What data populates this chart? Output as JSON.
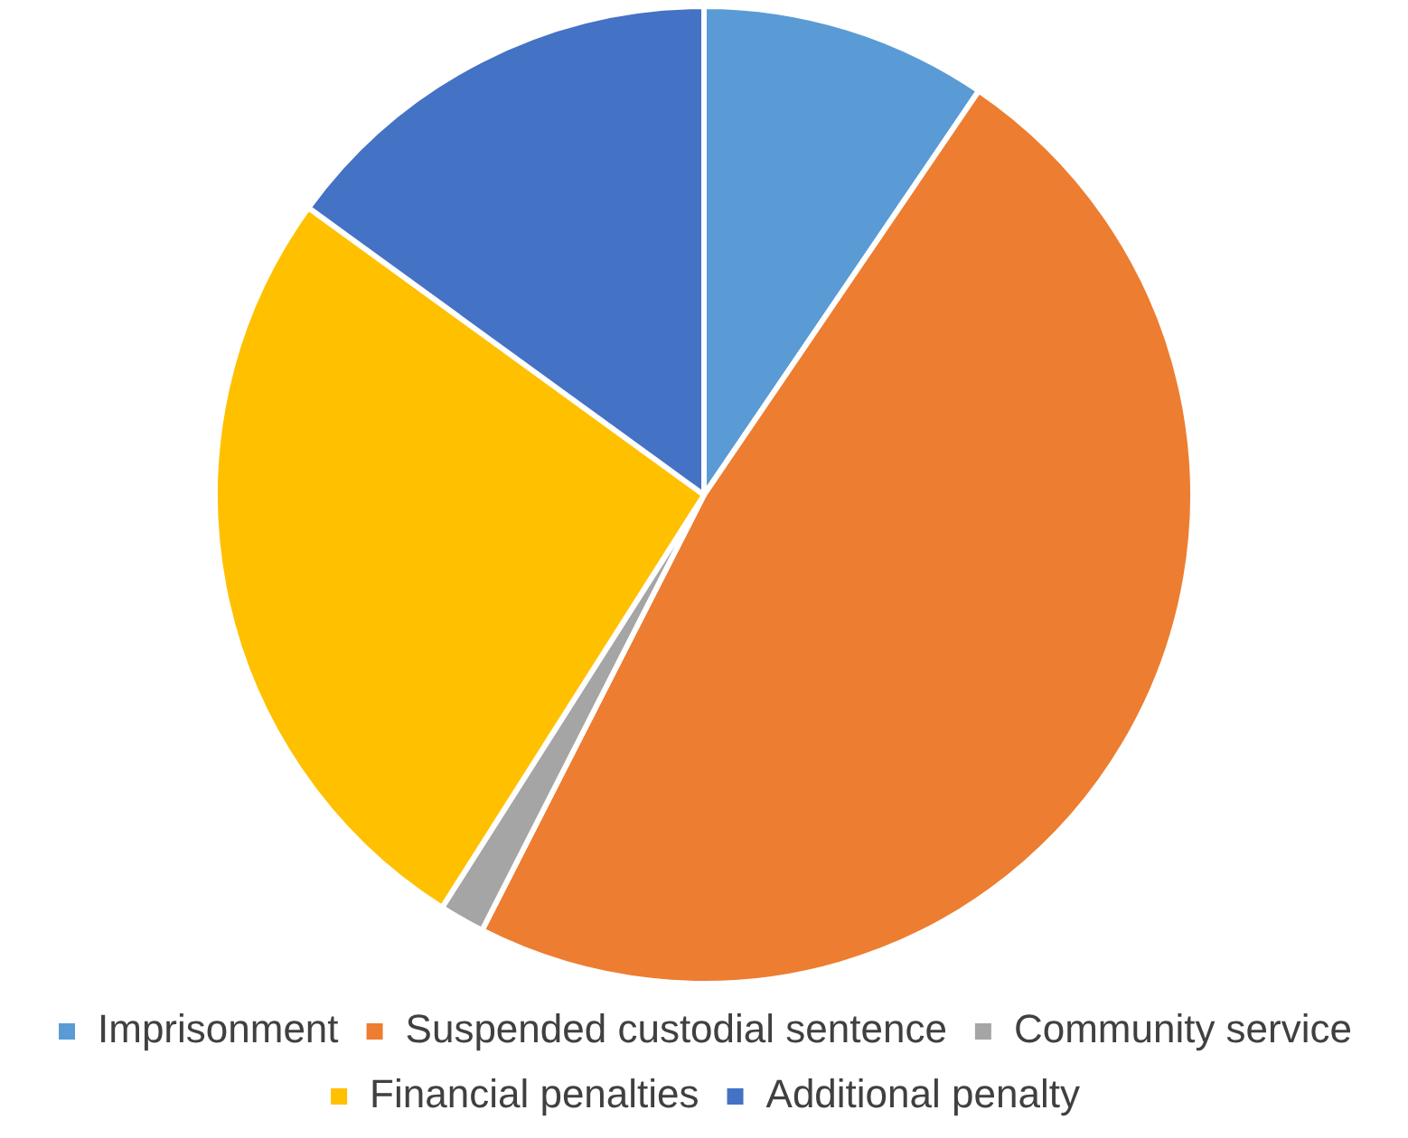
{
  "chart_data": {
    "type": "pie",
    "categories": [
      "Imprisonment",
      "Suspended custodial sentence",
      "Community service",
      "Financial penalties",
      "Additional penalty"
    ],
    "values": [
      9.5,
      48,
      1.5,
      26,
      15
    ],
    "colors": [
      "#5b9bd5",
      "#ed7d31",
      "#a5a5a5",
      "#ffc000",
      "#4472c4"
    ],
    "legend": "bottom"
  }
}
